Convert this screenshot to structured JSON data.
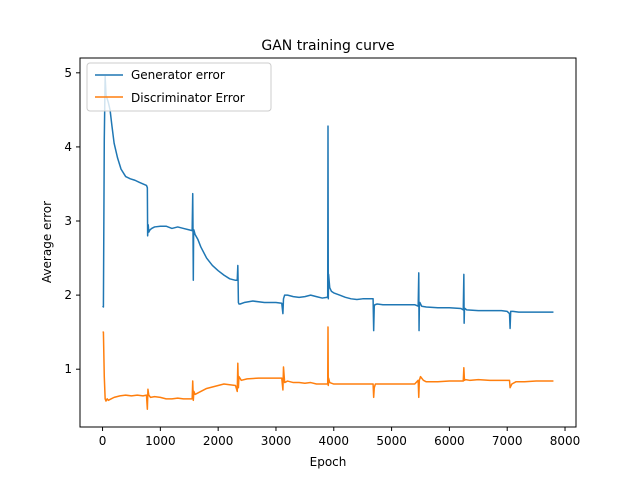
{
  "chart_data": {
    "type": "line",
    "title": "GAN training curve",
    "xlabel": "Epoch",
    "ylabel": "Average error",
    "xlim": [
      -390,
      8190
    ],
    "ylim": [
      0.22,
      5.2
    ],
    "xticks": [
      0,
      1000,
      2000,
      3000,
      4000,
      5000,
      6000,
      7000,
      8000
    ],
    "xtick_labels": [
      "0",
      "1000",
      "2000",
      "3000",
      "4000",
      "5000",
      "6000",
      "7000",
      "8000"
    ],
    "yticks": [
      1,
      2,
      3,
      4,
      5
    ],
    "ytick_labels": [
      "1",
      "2",
      "3",
      "4",
      "5"
    ],
    "grid": false,
    "legend_position": "top-left",
    "series": [
      {
        "name": "Generator error",
        "color": "#1f77b4",
        "x": [
          0,
          15,
          30,
          45,
          60,
          80,
          100,
          130,
          160,
          200,
          260,
          320,
          400,
          480,
          560,
          640,
          700,
          760,
          775,
          780,
          790,
          800,
          820,
          850,
          900,
          1000,
          1100,
          1200,
          1300,
          1400,
          1500,
          1550,
          1560,
          1565,
          1570,
          1575,
          1580,
          1600,
          1650,
          1700,
          1800,
          1900,
          2000,
          2100,
          2200,
          2300,
          2330,
          2340,
          2345,
          2350,
          2360,
          2380,
          2450,
          2600,
          2800,
          3000,
          3100,
          3120,
          3130,
          3150,
          3200,
          3300,
          3400,
          3500,
          3600,
          3700,
          3800,
          3880,
          3895,
          3900,
          3905,
          3910,
          3930,
          3960,
          4000,
          4100,
          4200,
          4300,
          4400,
          4500,
          4600,
          4680,
          4690,
          4700,
          4710,
          4750,
          4850,
          5000,
          5200,
          5400,
          5460,
          5470,
          5475,
          5480,
          5490,
          5520,
          5600,
          5800,
          6000,
          6200,
          6240,
          6250,
          6255,
          6260,
          6270,
          6300,
          6500,
          6700,
          6900,
          7000,
          7040,
          7050,
          7060,
          7100,
          7200,
          7400,
          7600,
          7800
        ],
        "values": [
          1.85,
          1.84,
          4.1,
          4.95,
          4.7,
          4.65,
          4.6,
          4.5,
          4.3,
          4.05,
          3.85,
          3.7,
          3.6,
          3.57,
          3.55,
          3.52,
          3.5,
          3.48,
          3.45,
          2.8,
          2.95,
          2.85,
          2.88,
          2.9,
          2.92,
          2.93,
          2.93,
          2.9,
          2.92,
          2.9,
          2.88,
          2.87,
          3.37,
          2.85,
          2.2,
          2.8,
          2.88,
          2.82,
          2.75,
          2.65,
          2.5,
          2.4,
          2.33,
          2.27,
          2.22,
          2.2,
          2.2,
          2.4,
          2.18,
          1.9,
          1.88,
          1.88,
          1.9,
          1.92,
          1.9,
          1.9,
          1.89,
          1.75,
          1.95,
          2.0,
          2.0,
          1.98,
          1.97,
          1.98,
          2.0,
          1.98,
          1.96,
          1.97,
          1.98,
          4.28,
          1.95,
          2.28,
          2.1,
          2.05,
          2.03,
          2.0,
          1.97,
          1.95,
          1.94,
          1.95,
          1.95,
          1.95,
          1.52,
          1.85,
          1.87,
          1.88,
          1.87,
          1.87,
          1.87,
          1.87,
          1.85,
          2.3,
          1.52,
          1.85,
          1.9,
          1.85,
          1.84,
          1.83,
          1.83,
          1.82,
          1.8,
          2.28,
          1.62,
          1.8,
          1.82,
          1.8,
          1.79,
          1.79,
          1.79,
          1.78,
          1.75,
          1.55,
          1.78,
          1.78,
          1.77,
          1.77,
          1.77,
          1.77
        ]
      },
      {
        "name": "Discriminator Error",
        "color": "#ff7f0e",
        "x": [
          0,
          15,
          30,
          45,
          60,
          80,
          100,
          150,
          200,
          300,
          400,
          500,
          600,
          700,
          760,
          775,
          785,
          800,
          830,
          900,
          1000,
          1100,
          1200,
          1300,
          1400,
          1500,
          1550,
          1560,
          1570,
          1580,
          1600,
          1700,
          1800,
          1900,
          2000,
          2100,
          2200,
          2300,
          2330,
          2340,
          2350,
          2360,
          2400,
          2500,
          2700,
          2900,
          3100,
          3120,
          3130,
          3150,
          3200,
          3300,
          3400,
          3500,
          3600,
          3700,
          3800,
          3880,
          3895,
          3900,
          3905,
          3910,
          3930,
          4000,
          4200,
          4400,
          4600,
          4680,
          4690,
          4700,
          4720,
          4800,
          5000,
          5200,
          5400,
          5460,
          5470,
          5480,
          5500,
          5550,
          5600,
          5700,
          5800,
          6000,
          6200,
          6240,
          6250,
          6260,
          6280,
          6350,
          6500,
          6700,
          6900,
          7000,
          7040,
          7050,
          7080,
          7150,
          7300,
          7500,
          7700,
          7800
        ],
        "values": [
          1.5,
          1.5,
          0.9,
          0.6,
          0.57,
          0.6,
          0.58,
          0.6,
          0.62,
          0.64,
          0.65,
          0.64,
          0.65,
          0.64,
          0.65,
          0.46,
          0.73,
          0.65,
          0.62,
          0.63,
          0.62,
          0.6,
          0.6,
          0.61,
          0.6,
          0.6,
          0.6,
          0.84,
          0.58,
          0.7,
          0.66,
          0.7,
          0.74,
          0.76,
          0.78,
          0.8,
          0.79,
          0.78,
          0.7,
          1.08,
          0.75,
          0.9,
          0.85,
          0.87,
          0.88,
          0.88,
          0.88,
          0.72,
          1.03,
          0.82,
          0.84,
          0.82,
          0.82,
          0.81,
          0.82,
          0.8,
          0.8,
          0.8,
          0.8,
          1.57,
          0.78,
          0.88,
          0.82,
          0.8,
          0.8,
          0.8,
          0.8,
          0.8,
          0.62,
          0.75,
          0.8,
          0.8,
          0.8,
          0.8,
          0.8,
          0.85,
          0.62,
          0.85,
          0.9,
          0.85,
          0.83,
          0.83,
          0.83,
          0.84,
          0.84,
          0.84,
          1.02,
          0.85,
          0.86,
          0.85,
          0.86,
          0.85,
          0.85,
          0.85,
          0.85,
          0.75,
          0.8,
          0.83,
          0.83,
          0.84,
          0.84,
          0.84
        ]
      }
    ]
  }
}
